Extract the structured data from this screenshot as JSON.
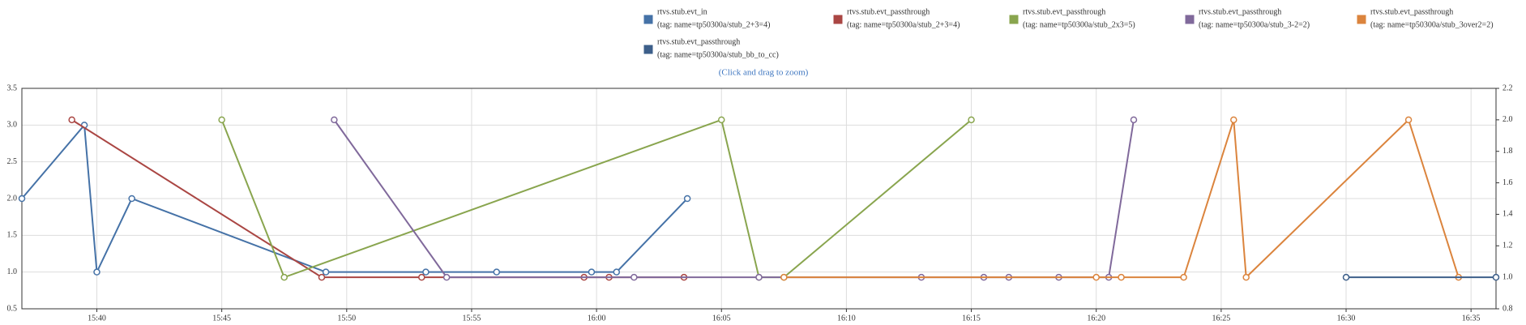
{
  "chart_data": {
    "type": "line",
    "subtitle": "(Click and drag to zoom)",
    "xlim": [
      "15:37:00",
      "16:36:00"
    ],
    "xticks": [
      "15:40",
      "15:45",
      "15:50",
      "15:55",
      "16:00",
      "16:05",
      "16:10",
      "16:15",
      "16:20",
      "16:25",
      "16:30",
      "16:35"
    ],
    "ylim": [
      0.5,
      3.5
    ],
    "yticks": [
      0.5,
      {
        "value": 1,
        "label": "1.0"
      },
      1.5,
      {
        "value": 2,
        "label": "2.0"
      },
      2.5,
      {
        "value": 3,
        "label": "3.0"
      },
      3.5
    ],
    "y2lim": [
      0.8,
      2.2
    ],
    "y2ticks": [
      0.8,
      {
        "value": 1,
        "label": "1.0"
      },
      1.2,
      1.4,
      1.6,
      1.8,
      {
        "value": 2,
        "label": "2.0"
      },
      2.2
    ],
    "grid": true,
    "legend": "top",
    "series": [
      {
        "name": "rtvs.stub.evt_in",
        "tag": "(tag: name=tp50300a/stub_2+3=4)",
        "color": "#4572A7",
        "x": [
          "15:37:00",
          "15:39:30",
          "15:40:00",
          "15:41:24",
          "15:49:10",
          "15:53:10",
          "15:56:00",
          "15:59:48",
          "16:00:48",
          "16:03:38"
        ],
        "values": [
          2,
          3,
          1,
          2,
          1,
          1,
          1,
          1,
          1,
          2
        ]
      },
      {
        "name": "rtvs.stub.evt_passthrough",
        "tag": "(tag: name=tp50300a/stub_2+3=4)",
        "color": "#AA4643",
        "axis": "y2",
        "x": [
          "15:39:00",
          "15:49:00",
          "15:53:00",
          "15:59:30",
          "16:00:30",
          "16:03:30"
        ],
        "values": [
          2,
          1,
          1,
          1,
          1,
          1
        ]
      },
      {
        "name": "rtvs.stub.evt_passthrough",
        "tag": "(tag: name=tp50300a/stub_2x3=5)",
        "color": "#89A54E",
        "axis": "y2",
        "x": [
          "15:45:00",
          "15:47:30",
          "16:05:00",
          "16:06:30",
          "16:07:30",
          "16:15:00"
        ],
        "values": [
          2,
          1,
          2,
          1,
          1,
          2
        ]
      },
      {
        "name": "rtvs.stub.evt_passthrough",
        "tag": "(tag: name=tp50300a/stub_3-2=2)",
        "color": "#80699B",
        "axis": "y2",
        "x": [
          "15:49:30",
          "15:54:00",
          "16:01:30",
          "16:06:30",
          "16:13:00",
          "16:15:30",
          "16:16:30",
          "16:18:30",
          "16:20:30",
          "16:21:30"
        ],
        "values": [
          2,
          1,
          1,
          1,
          1,
          1,
          1,
          1,
          1,
          2
        ]
      },
      {
        "name": "rtvs.stub.evt_passthrough",
        "tag": "(tag: name=tp50300a/stub_3over2=2)",
        "color": "#DB843D",
        "axis": "y2",
        "x": [
          "16:07:30",
          "16:20:00",
          "16:21:00",
          "16:23:30",
          "16:25:30",
          "16:26:00",
          "16:32:30",
          "16:34:30"
        ],
        "values": [
          1,
          1,
          1,
          1,
          2,
          1,
          2,
          1
        ]
      },
      {
        "name": "rtvs.stub.evt_passthrough",
        "tag": "(tag: name=tp50300a/stub_bb_to_cc)",
        "color": "#3D5F8A",
        "axis": "y2",
        "x": [
          "16:30:00",
          "16:36:00"
        ],
        "values": [
          1,
          1
        ]
      }
    ]
  }
}
